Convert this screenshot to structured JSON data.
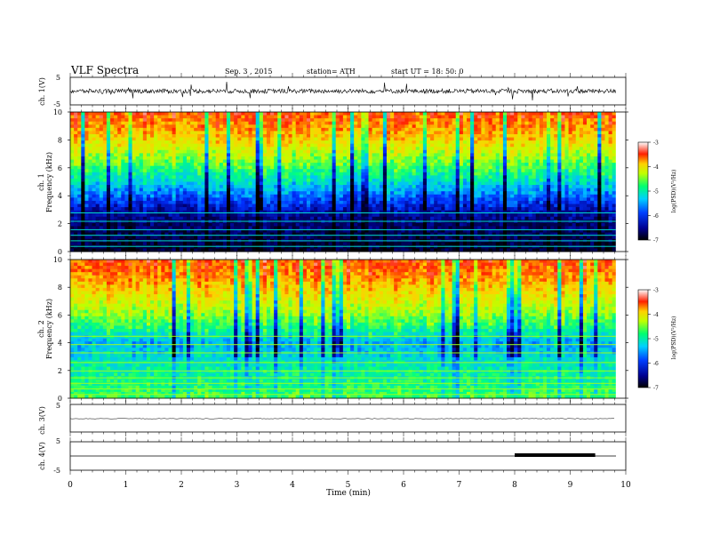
{
  "header": {
    "title": "VLF  Spectra",
    "date": "Sep. 3  , 2015",
    "station": "station= ATH",
    "start": "start  UT  =   18: 50: 0"
  },
  "colors": {
    "colormap": [
      "#000000",
      "#000080",
      "#0030ff",
      "#00c0ff",
      "#00ff80",
      "#c0ff00",
      "#ffd000",
      "#ff2000",
      "#ffffff"
    ],
    "trace": "#000000",
    "mark": "#000000"
  },
  "chart_data": [
    {
      "type": "line",
      "id": "ch1-waveform",
      "ylabel": "ch. 1(V)",
      "ylim": [
        -5,
        5
      ],
      "yticks": [
        "5",
        "-5"
      ],
      "description_values": "broadband noise around 0 V, amplitude mostly within ±1 V with spikes"
    },
    {
      "type": "heatmap",
      "id": "ch1-spectrogram",
      "ylabel": "ch. 1\nFrequency  (kHz)",
      "ylim": [
        0,
        10
      ],
      "yticks": [
        "0",
        "2",
        "4",
        "6",
        "8",
        "10"
      ],
      "colorbar": {
        "label": "log(PSD)(V²/Hz)",
        "range": [
          -7,
          -3
        ],
        "ticks": [
          "-3",
          "-4",
          "-5",
          "-6",
          "-7"
        ]
      },
      "band_profile": [
        {
          "f": 0,
          "level": -6.8
        },
        {
          "f": 2,
          "level": -6.6
        },
        {
          "f": 3,
          "level": -6.3
        },
        {
          "f": 4,
          "level": -5.8
        },
        {
          "f": 5,
          "level": -5.3
        },
        {
          "f": 6,
          "level": -4.9
        },
        {
          "f": 7,
          "level": -4.5
        },
        {
          "f": 8,
          "level": -4.1
        },
        {
          "f": 9,
          "level": -3.8
        },
        {
          "f": 10,
          "level": -3.6
        }
      ]
    },
    {
      "type": "heatmap",
      "id": "ch2-spectrogram",
      "ylabel": "ch. 2\nFrequency  (kHz)",
      "ylim": [
        0,
        10
      ],
      "yticks": [
        "0",
        "2",
        "4",
        "6",
        "8",
        "10"
      ],
      "colorbar": {
        "label": "log(PSD)(V²/Hz)",
        "range": [
          -7,
          -3
        ],
        "ticks": [
          "-3",
          "-4",
          "-5",
          "-6",
          "-7"
        ]
      },
      "band_profile": [
        {
          "f": 0,
          "level": -4.8
        },
        {
          "f": 1,
          "level": -5.0
        },
        {
          "f": 2,
          "level": -5.1
        },
        {
          "f": 3,
          "level": -5.3
        },
        {
          "f": 4,
          "level": -5.5
        },
        {
          "f": 5,
          "level": -5.0
        },
        {
          "f": 6,
          "level": -4.6
        },
        {
          "f": 7,
          "level": -4.3
        },
        {
          "f": 8,
          "level": -4.0
        },
        {
          "f": 9,
          "level": -3.7
        },
        {
          "f": 10,
          "level": -3.6
        }
      ]
    },
    {
      "type": "line",
      "id": "ch3-waveform",
      "ylabel": "ch. 3(V)",
      "ylim": [
        -5,
        5
      ],
      "yticks": [
        "5"
      ],
      "values_note": "flat trace near 0 V"
    },
    {
      "type": "line",
      "id": "ch4-waveform",
      "ylabel": "ch. 4(V)",
      "ylim": [
        -5,
        5
      ],
      "yticks": [
        "5",
        "-5"
      ],
      "values_note": "flat trace near 0 V",
      "marker_segment": {
        "x_start": 8.0,
        "x_end": 9.45
      }
    }
  ],
  "xaxis": {
    "label": "Time  (min)",
    "range": [
      0,
      10
    ],
    "ticks": [
      "0",
      "1",
      "2",
      "3",
      "4",
      "5",
      "6",
      "7",
      "8",
      "9",
      "10"
    ],
    "data_end": 9.82
  }
}
